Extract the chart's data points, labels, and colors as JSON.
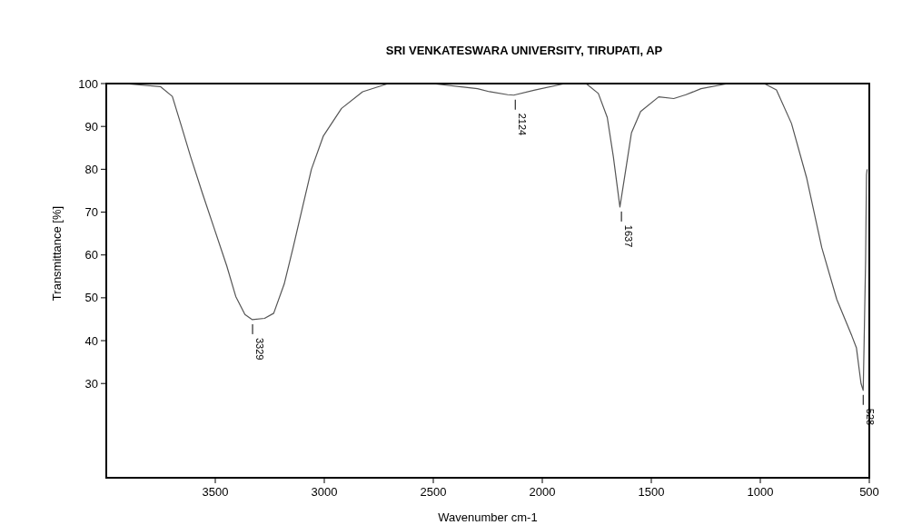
{
  "chart_data": {
    "type": "line",
    "title": "SRI VENKATESWARA UNIVERSITY,  TIRUPATI,  AP",
    "xlabel": "Wavenumber cm-1",
    "ylabel": "Transmittance [%]",
    "xlim": [
      4000,
      500
    ],
    "xticks": [
      3500,
      3000,
      2500,
      2000,
      1500,
      1000,
      500
    ],
    "ylim": [
      8,
      100
    ],
    "yticks": [
      30,
      40,
      50,
      60,
      70,
      80,
      90,
      100
    ],
    "grid": false,
    "series": [
      {
        "color": "#555555",
        "x": [
          4000,
          3918,
          3752,
          3697,
          3655,
          3613,
          3559,
          3503,
          3447,
          3406,
          3364,
          3330,
          3274,
          3232,
          3184,
          3143,
          3101,
          3059,
          3004,
          2921,
          2824,
          2713,
          2505,
          2297,
          2242,
          2159,
          2131,
          2034,
          1896,
          1799,
          1743,
          1702,
          1674,
          1644,
          1619,
          1591,
          1549,
          1466,
          1397,
          1341,
          1272,
          1148,
          982,
          926,
          857,
          787,
          718,
          649,
          580,
          559,
          538,
          528,
          524,
          517,
          513,
          510
        ],
        "values": [
          100,
          100,
          99.3,
          97,
          90,
          82.9,
          74.4,
          65.9,
          57.4,
          50.3,
          46.1,
          44.9,
          45.2,
          46.4,
          53.2,
          61.7,
          70.9,
          80,
          87.8,
          94.2,
          98.1,
          99.9,
          100,
          98.8,
          98.1,
          97.4,
          97.3,
          98.5,
          100,
          100,
          97.7,
          92.1,
          82.9,
          71.2,
          79.3,
          88.5,
          93.5,
          96.9,
          96.5,
          97.4,
          98.8,
          100,
          100,
          98.5,
          90.7,
          77.9,
          61.7,
          49.6,
          41.1,
          38.3,
          30,
          28.4,
          39,
          58.8,
          78.7,
          80
        ]
      }
    ],
    "annotations": [
      {
        "text": "3329",
        "x": 3329,
        "y": 44.9
      },
      {
        "text": "2124",
        "x": 2124,
        "y": 97.3
      },
      {
        "text": "1637",
        "x": 1637,
        "y": 71.2
      },
      {
        "text": "528",
        "x": 528,
        "y": 28.4
      }
    ]
  }
}
